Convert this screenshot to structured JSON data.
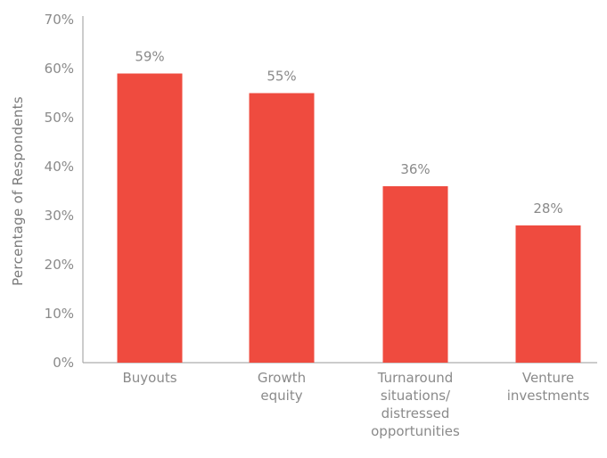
{
  "chart_data": {
    "type": "bar",
    "title": "",
    "xlabel": "",
    "ylabel": "Percentage of Respondents",
    "ylim": [
      0,
      70
    ],
    "yticks": [
      "0%",
      "10%",
      "20%",
      "30%",
      "40%",
      "50%",
      "60%",
      "70%"
    ],
    "ytick_values": [
      0,
      10,
      20,
      30,
      40,
      50,
      60,
      70
    ],
    "categories": [
      [
        "Buyouts"
      ],
      [
        "Growth",
        "equity"
      ],
      [
        "Turnaround",
        "situations/",
        "distressed",
        "opportunities"
      ],
      [
        "Venture",
        "investments"
      ]
    ],
    "values": [
      59,
      55,
      36,
      28
    ],
    "data_labels": [
      "59%",
      "55%",
      "36%",
      "28%"
    ],
    "bar_color": "#ef4b3f",
    "axis_color": "#9a9a9a",
    "grid": false,
    "legend": "none"
  }
}
